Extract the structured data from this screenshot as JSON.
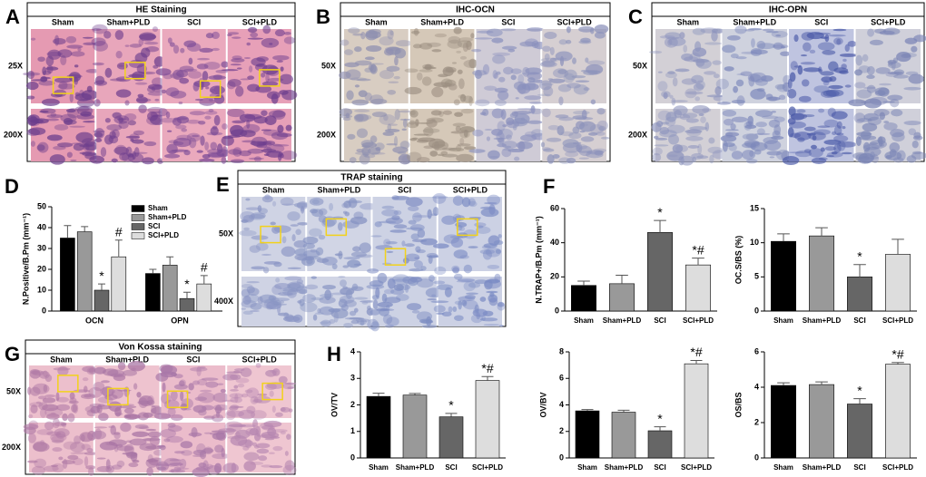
{
  "image_panels": [
    {
      "letter": "A",
      "title": "HE Staining",
      "columns": [
        "Sham",
        "Sham+PLD",
        "SCI",
        "SCI+PLD"
      ],
      "rows": [
        "25X",
        "200X"
      ]
    },
    {
      "letter": "B",
      "title": "IHC-OCN",
      "columns": [
        "Sham",
        "Sham+PLD",
        "SCI",
        "SCI+PLD"
      ],
      "rows": [
        "50X",
        "200X"
      ]
    },
    {
      "letter": "C",
      "title": "IHC-OPN",
      "columns": [
        "Sham",
        "Sham+PLD",
        "SCI",
        "SCI+PLD"
      ],
      "rows": [
        "50X",
        "200X"
      ]
    },
    {
      "letter": "E",
      "title": "TRAP staining",
      "columns": [
        "Sham",
        "Sham+PLD",
        "SCI",
        "SCI+PLD"
      ],
      "rows": [
        "50X",
        "400X"
      ]
    },
    {
      "letter": "G",
      "title": "Von Kossa staining",
      "columns": [
        "Sham",
        "Sham+PLD",
        "SCI",
        "SCI+PLD"
      ],
      "rows": [
        "50X",
        "200X"
      ]
    }
  ],
  "chart_data": [
    {
      "type": "bar",
      "letter": "D",
      "ylabel": "N.Positive/B.Pm (mm⁻¹)",
      "categories": [
        "OCN",
        "OPN"
      ],
      "series": [
        {
          "name": "Sham",
          "color": "#000000",
          "values": [
            35,
            18
          ],
          "errors": [
            6,
            2
          ],
          "annotations": [
            null,
            null
          ]
        },
        {
          "name": "Sham+PLD",
          "color": "#999999",
          "values": [
            38,
            22
          ],
          "errors": [
            2.5,
            4
          ],
          "annotations": [
            null,
            null
          ]
        },
        {
          "name": "SCI",
          "color": "#666666",
          "values": [
            10,
            6
          ],
          "errors": [
            3,
            3
          ],
          "annotations": [
            "*",
            "*"
          ]
        },
        {
          "name": "SCI+PLD",
          "color": "#dddddd",
          "values": [
            26,
            13
          ],
          "errors": [
            8,
            4
          ],
          "annotations": [
            "#",
            "#"
          ]
        }
      ],
      "ylim": [
        0,
        50
      ],
      "yticks": [
        0,
        10,
        20,
        30,
        40,
        50
      ]
    },
    {
      "type": "bar",
      "letter": "F",
      "ylabel": "N.TRAP+/B.Pm (mm⁻¹)",
      "categories": [
        "Sham",
        "Sham+PLD",
        "SCI",
        "SCI+PLD"
      ],
      "values": [
        15,
        16,
        46,
        27
      ],
      "errors": [
        2.5,
        5,
        7,
        4
      ],
      "annotations": [
        null,
        null,
        "*",
        "*#"
      ],
      "colors": [
        "#000000",
        "#999999",
        "#666666",
        "#dddddd"
      ],
      "ylim": [
        0,
        60
      ],
      "yticks": [
        0,
        20,
        40,
        60
      ]
    },
    {
      "type": "bar",
      "ylabel": "OC.S/BS (%)",
      "categories": [
        "Sham",
        "Sham+PLD",
        "SCI",
        "SCI+PLD"
      ],
      "values": [
        10.2,
        11,
        5,
        8.3
      ],
      "errors": [
        1.1,
        1.2,
        1.8,
        2.2
      ],
      "annotations": [
        null,
        null,
        "*",
        null
      ],
      "colors": [
        "#000000",
        "#999999",
        "#666666",
        "#dddddd"
      ],
      "ylim": [
        0,
        15
      ],
      "yticks": [
        0,
        5,
        10,
        15
      ]
    },
    {
      "type": "bar",
      "letter": "H",
      "ylabel": "OV/TV",
      "categories": [
        "Sham",
        "Sham+PLD",
        "SCI",
        "SCI+PLD"
      ],
      "values": [
        2.32,
        2.37,
        1.55,
        2.92
      ],
      "errors": [
        0.12,
        0.06,
        0.13,
        0.15
      ],
      "annotations": [
        null,
        null,
        "*",
        "*#"
      ],
      "colors": [
        "#000000",
        "#999999",
        "#666666",
        "#dddddd"
      ],
      "ylim": [
        0,
        4
      ],
      "yticks": [
        0,
        1,
        2,
        3,
        4
      ]
    },
    {
      "type": "bar",
      "ylabel": "OV/BV",
      "categories": [
        "Sham",
        "Sham+PLD",
        "SCI",
        "SCI+PLD"
      ],
      "values": [
        3.55,
        3.45,
        2.05,
        7.1
      ],
      "errors": [
        0.1,
        0.15,
        0.3,
        0.25
      ],
      "annotations": [
        null,
        null,
        "*",
        "*#"
      ],
      "colors": [
        "#000000",
        "#999999",
        "#666666",
        "#dddddd"
      ],
      "ylim": [
        0,
        8
      ],
      "yticks": [
        0,
        2,
        4,
        6,
        8
      ]
    },
    {
      "type": "bar",
      "ylabel": "OS/BS",
      "categories": [
        "Sham",
        "Sham+PLD",
        "SCI",
        "SCI+PLD"
      ],
      "values": [
        4.1,
        4.15,
        3.05,
        5.3
      ],
      "errors": [
        0.15,
        0.15,
        0.3,
        0.1
      ],
      "annotations": [
        null,
        null,
        "*",
        "*#"
      ],
      "colors": [
        "#000000",
        "#999999",
        "#666666",
        "#dddddd"
      ],
      "ylim": [
        0,
        6
      ],
      "yticks": [
        0,
        2,
        4,
        6
      ]
    }
  ]
}
